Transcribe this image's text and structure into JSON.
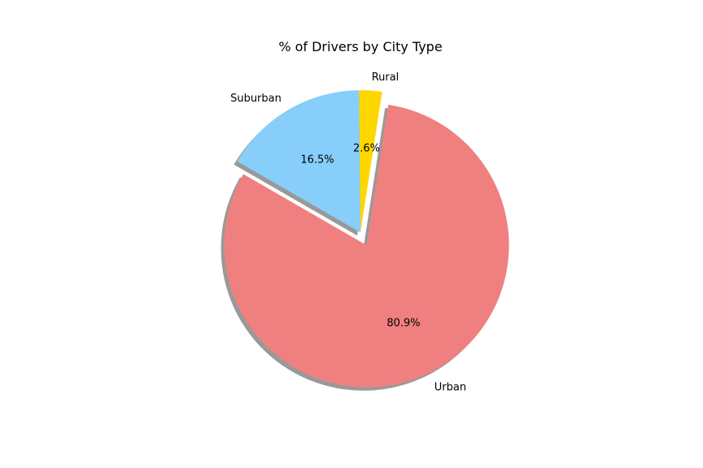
{
  "chart_data": {
    "type": "pie",
    "title": "% of Drivers by City Type",
    "labels": [
      "Urban",
      "Rural",
      "Suburban"
    ],
    "values": [
      80.9,
      2.6,
      16.5
    ],
    "percent_labels": [
      "80.9%",
      "2.6%",
      "16.5%"
    ],
    "colors": [
      "#F08080",
      "#FFD700",
      "#87CEFA"
    ],
    "exploded": [
      "Urban"
    ],
    "shadow": true,
    "start_angle_deg": 150,
    "legend": "none"
  }
}
